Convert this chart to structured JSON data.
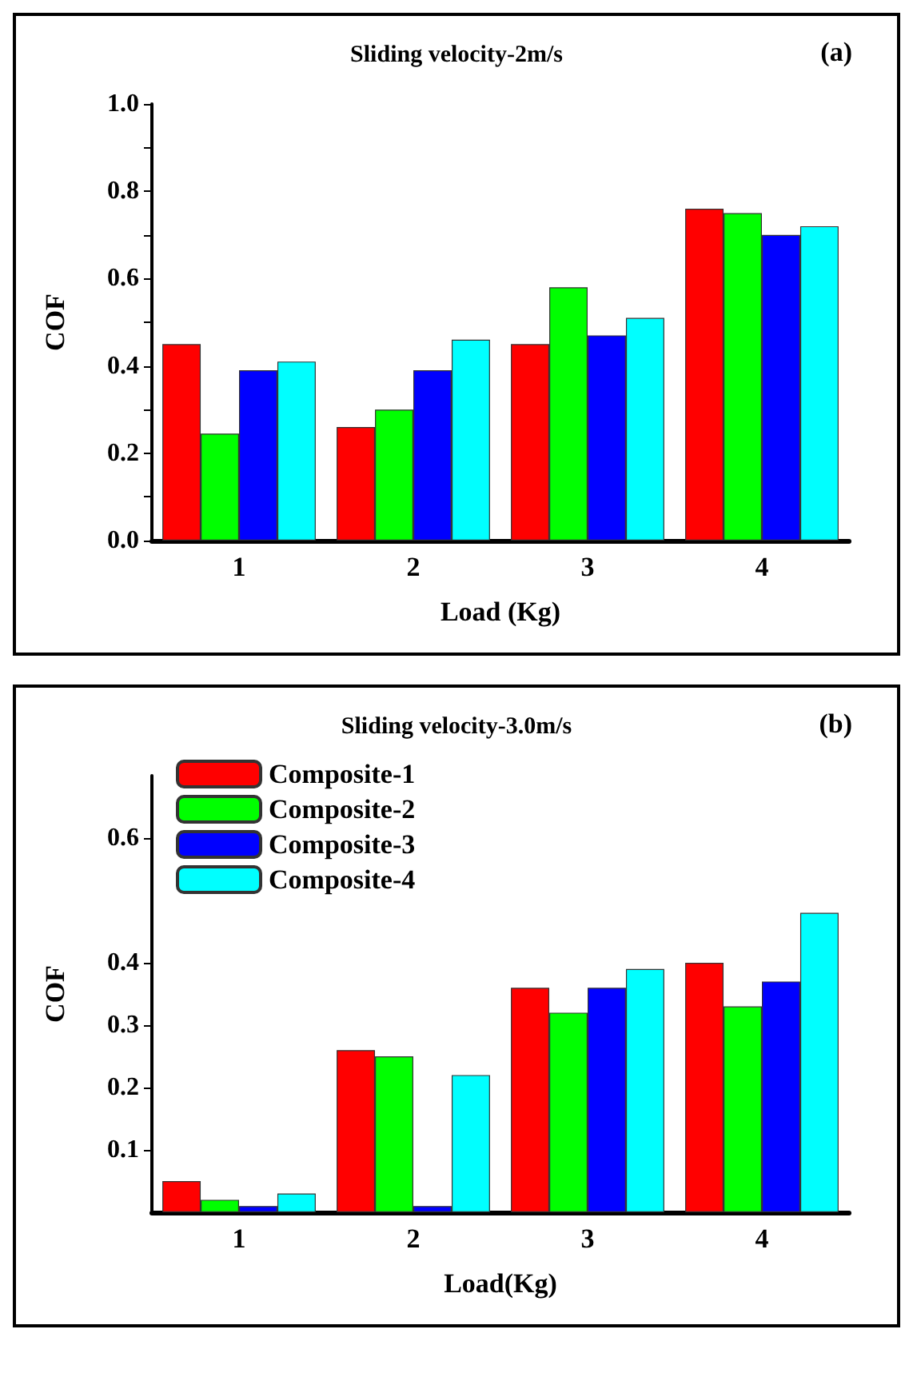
{
  "chart_data": [
    {
      "type": "bar",
      "title": "Sliding velocity-2m/s",
      "annotations": [
        "(a)"
      ],
      "xlabel": "Load (Kg)",
      "ylabel": "COF",
      "categories": [
        "1",
        "2",
        "3",
        "4"
      ],
      "ylim": [
        0,
        1
      ],
      "yticks": [
        {
          "value": 0,
          "label": "0.0"
        },
        {
          "value": 0.1,
          "label": null
        },
        0.2,
        {
          "value": 0.3,
          "label": null
        },
        0.4,
        {
          "value": 0.5,
          "label": null
        },
        0.6,
        {
          "value": 0.7,
          "label": null
        },
        0.8,
        {
          "value": 0.9,
          "label": null
        },
        {
          "value": 1,
          "label": "1.0"
        }
      ],
      "grid": false,
      "series": [
        {
          "color": "#ff0000",
          "values": [
            0.45,
            0.26,
            0.45,
            0.76
          ]
        },
        {
          "color": "#00ff00",
          "values": [
            0.245,
            0.3,
            0.58,
            0.75
          ]
        },
        {
          "color": "#0000ff",
          "values": [
            0.39,
            0.39,
            0.47,
            0.7
          ]
        },
        {
          "color": "#00ffff",
          "values": [
            0.41,
            0.46,
            0.51,
            0.72
          ]
        }
      ]
    },
    {
      "type": "bar",
      "title": "Sliding velocity-3.0m/s",
      "annotations": [
        "(b)"
      ],
      "xlabel": "Load(Kg)",
      "ylabel": "COF",
      "categories": [
        "1",
        "2",
        "3",
        "4"
      ],
      "ylim": [
        0,
        0.7
      ],
      "yticks": [
        0.1,
        0.2,
        0.3,
        0.4,
        0.6
      ],
      "grid": false,
      "legend": "top left",
      "series": [
        {
          "name": "Composite-1",
          "color": "#ff0000",
          "values": [
            0.05,
            0.26,
            0.36,
            0.4
          ]
        },
        {
          "name": "Composite-2",
          "color": "#00ff00",
          "values": [
            0.02,
            0.25,
            0.32,
            0.33
          ]
        },
        {
          "name": "Composite-3",
          "color": "#0000ff",
          "values": [
            0.01,
            0.01,
            0.36,
            0.37
          ]
        },
        {
          "name": "Composite-4",
          "color": "#00ffff",
          "values": [
            0.03,
            0.22,
            0.39,
            0.48
          ]
        }
      ]
    }
  ]
}
